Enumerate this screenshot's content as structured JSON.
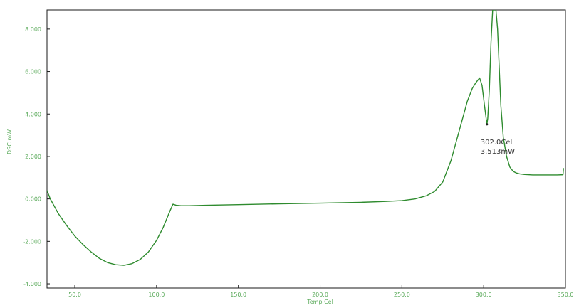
{
  "chart_data": {
    "type": "line",
    "title": "",
    "xlabel": "Temp Cel",
    "ylabel": "DSC mW",
    "xlim": [
      33,
      350
    ],
    "ylim": [
      -4.2,
      8.9
    ],
    "x_ticks": [
      50,
      100,
      150,
      200,
      250,
      300,
      350
    ],
    "x_tick_labels": [
      "50.0",
      "100.0",
      "150.0",
      "200.0",
      "250.0",
      "300.0",
      "350.0"
    ],
    "y_ticks": [
      -4,
      -2,
      0,
      2,
      4,
      6,
      8
    ],
    "y_tick_labels": [
      "-4.000",
      "-2.000",
      "0.000",
      "2.000",
      "4.000",
      "6.000",
      "8.000"
    ],
    "grid": false,
    "legend": "none",
    "series": [
      {
        "color": "#2e8b2e",
        "x": [
          33,
          35,
          40,
          45,
          50,
          55,
          60,
          65,
          70,
          75,
          80,
          85,
          90,
          95,
          100,
          104,
          108,
          110,
          112,
          115,
          120,
          130,
          150,
          175,
          200,
          225,
          240,
          250,
          258,
          265,
          270,
          275,
          280,
          285,
          290,
          293,
          295,
          296,
          297.5,
          299,
          300.5,
          301.5,
          302.0,
          302.5,
          303.5,
          304.5,
          305.5,
          306.5,
          307.5,
          308.5,
          309.5,
          310.5,
          312,
          314,
          316,
          318,
          320,
          322,
          325,
          330,
          335,
          340,
          345,
          348.5,
          348.8
        ],
        "y": [
          0.4,
          0.0,
          -0.7,
          -1.25,
          -1.75,
          -2.15,
          -2.5,
          -2.8,
          -3.0,
          -3.1,
          -3.13,
          -3.05,
          -2.85,
          -2.5,
          -1.95,
          -1.35,
          -0.6,
          -0.25,
          -0.3,
          -0.32,
          -0.32,
          -0.3,
          -0.27,
          -0.23,
          -0.2,
          -0.16,
          -0.12,
          -0.08,
          0.0,
          0.15,
          0.35,
          0.8,
          1.8,
          3.2,
          4.6,
          5.2,
          5.45,
          5.55,
          5.7,
          5.35,
          4.4,
          3.8,
          3.513,
          3.8,
          5.2,
          7.4,
          8.9,
          8.9,
          8.9,
          8.0,
          6.2,
          4.4,
          2.9,
          2.0,
          1.5,
          1.3,
          1.22,
          1.18,
          1.15,
          1.13,
          1.13,
          1.13,
          1.13,
          1.14,
          1.45
        ]
      }
    ],
    "annotations": [
      {
        "text": "302.0Cel",
        "x": 302.0,
        "y": 3.513
      },
      {
        "text": "3.513mW",
        "x": 302.0,
        "y": 3.513
      }
    ]
  }
}
